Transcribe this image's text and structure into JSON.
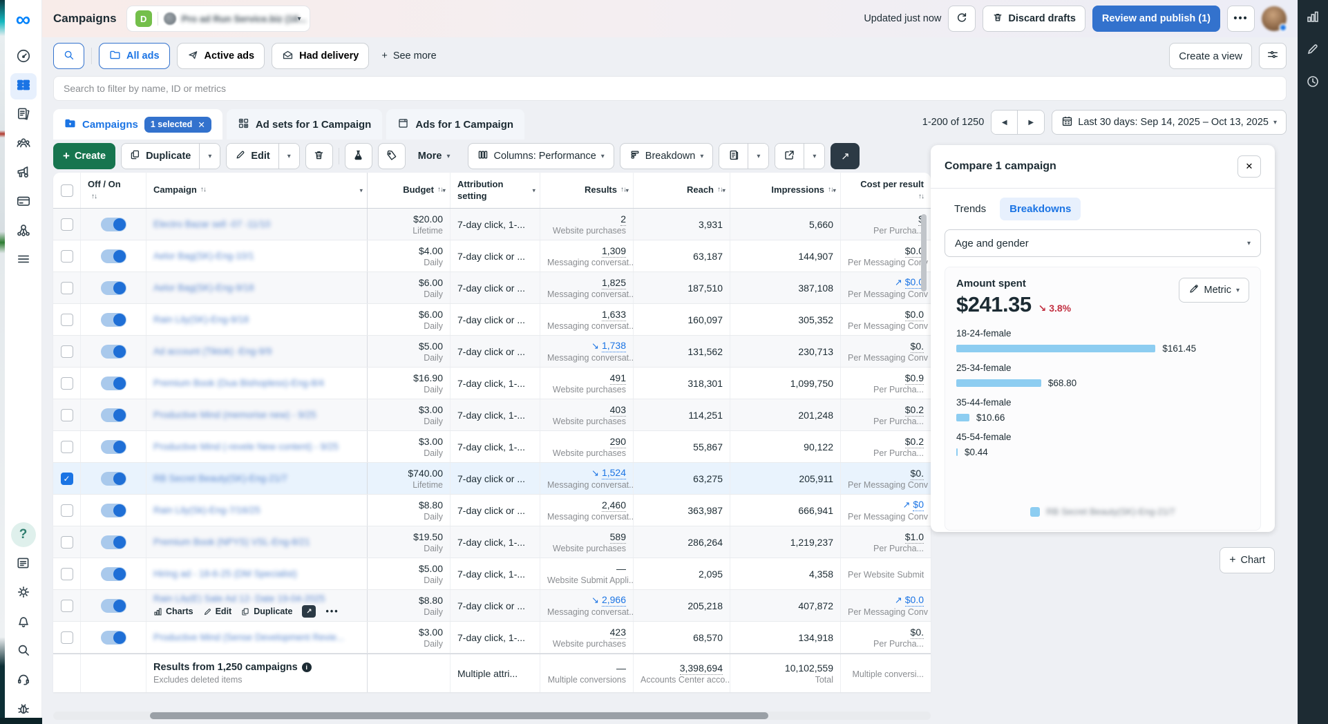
{
  "header": {
    "title": "Campaigns",
    "account_initial": "D",
    "account_name": "Pro ad Run Service.biz (18...",
    "updated": "Updated just now",
    "discard": "Discard drafts",
    "review": "Review and publish (1)"
  },
  "filters": {
    "all_ads": "All ads",
    "active_ads": "Active ads",
    "had_delivery": "Had delivery",
    "see_more": "See more",
    "create_view": "Create a view"
  },
  "search": {
    "placeholder": "Search to filter by name, ID or metrics"
  },
  "tabs": {
    "campaigns": "Campaigns",
    "selected_badge": "1 selected",
    "adsets": "Ad sets for 1 Campaign",
    "ads": "Ads for 1 Campaign"
  },
  "pagination": {
    "range": "1-200 of 1250",
    "date_range": "Last 30 days: Sep 14, 2025 – Oct 13, 2025"
  },
  "toolbar": {
    "create": "Create",
    "duplicate": "Duplicate",
    "edit": "Edit",
    "more": "More",
    "columns": "Columns: Performance",
    "breakdown": "Breakdown"
  },
  "row_actions": {
    "charts": "Charts",
    "edit": "Edit",
    "duplicate": "Duplicate"
  },
  "table": {
    "header": {
      "off_on": "Off / On",
      "campaign": "Campaign",
      "budget": "Budget",
      "attribution": "Attribution setting",
      "results": "Results",
      "reach": "Reach",
      "impressions": "Impressions",
      "cost": "Cost per result"
    },
    "rows": [
      {
        "name": "Electro Bazar sell -07 -11/10",
        "budget": "$20.00",
        "budget_period": "Lifetime",
        "attribution": "7-day click, 1-...",
        "results": "2",
        "results_type": "Website purchases",
        "reach": "3,931",
        "impressions": "5,660",
        "cost": "$",
        "cost_type": "Per Purcha..."
      },
      {
        "name": "Aelor Bag(SK)-Eng-10/1",
        "budget": "$4.00",
        "budget_period": "Daily",
        "attribution": "7-day click or ...",
        "results": "1,309",
        "results_type": "Messaging conversat...",
        "reach": "63,187",
        "impressions": "144,907",
        "cost": "$0.0",
        "cost_type": "Per Messaging Conv"
      },
      {
        "name": "Aelor Bag(SK)-Eng-9/18",
        "budget": "$6.00",
        "budget_period": "Daily",
        "attribution": "7-day click or ...",
        "results": "1,825",
        "results_type": "Messaging conversat...",
        "reach": "187,510",
        "impressions": "387,108",
        "cost": "$0.0",
        "cost_trend": "up",
        "cost_type": "Per Messaging Conv"
      },
      {
        "name": "Rain Lily(SK)-Eng-9/18",
        "budget": "$6.00",
        "budget_period": "Daily",
        "attribution": "7-day click or ...",
        "results": "1,633",
        "results_type": "Messaging conversat...",
        "reach": "160,097",
        "impressions": "305,352",
        "cost": "$0.0",
        "cost_type": "Per Messaging Conv"
      },
      {
        "name": "Ad account (Tiktok) -Eng-9/9",
        "budget": "$5.00",
        "budget_period": "Daily",
        "attribution": "7-day click or ...",
        "results": "1,738",
        "results_trend": "down",
        "results_type": "Messaging conversat...",
        "reach": "131,562",
        "impressions": "230,713",
        "cost": "$0.",
        "cost_type": "Per Messaging Conv"
      },
      {
        "name": "Premium Book (Dua Bishopless)-Eng-8/4",
        "budget": "$16.90",
        "budget_period": "Daily",
        "attribution": "7-day click, 1-...",
        "results": "491",
        "results_type": "Website purchases",
        "reach": "318,301",
        "impressions": "1,099,750",
        "cost": "$0.9",
        "cost_type": "Per Purcha..."
      },
      {
        "name": "Productive Mind (memorise new) - 9/25",
        "budget": "$3.00",
        "budget_period": "Daily",
        "attribution": "7-day click, 1-...",
        "results": "403",
        "results_type": "Website purchases",
        "reach": "114,251",
        "impressions": "201,248",
        "cost": "$0.2",
        "cost_type": "Per Purcha..."
      },
      {
        "name": "Productive Mind (-revele New content) - 9/25",
        "budget": "$3.00",
        "budget_period": "Daily",
        "attribution": "7-day click, 1-...",
        "results": "290",
        "results_type": "Website purchases",
        "reach": "55,867",
        "impressions": "90,122",
        "cost": "$0.2",
        "cost_type": "Per Purcha..."
      },
      {
        "name": "RB Secret Beauty(SK)-Eng-21/7",
        "budget": "$740.00",
        "budget_period": "Lifetime",
        "attribution": "7-day click or ...",
        "results": "1,524",
        "results_trend": "down",
        "results_type": "Messaging conversat...",
        "reach": "63,275",
        "impressions": "205,911",
        "cost": "$0.",
        "cost_type": "Per Messaging Conv",
        "selected": true
      },
      {
        "name": "Rain Lily(Sk)-Eng-7/16/25",
        "budget": "$8.80",
        "budget_period": "Daily",
        "attribution": "7-day click or ...",
        "results": "2,460",
        "results_type": "Messaging conversat...",
        "reach": "363,987",
        "impressions": "666,941",
        "cost": "$0",
        "cost_trend": "up",
        "cost_type": "Per Messaging Conv"
      },
      {
        "name": "Premium Book (NPYS) VSL-Eng-8/21",
        "budget": "$19.50",
        "budget_period": "Daily",
        "attribution": "7-day click, 1-...",
        "results": "589",
        "results_type": "Website purchases",
        "reach": "286,264",
        "impressions": "1,219,237",
        "cost": "$1.0",
        "cost_type": "Per Purcha..."
      },
      {
        "name": "Hiring ad - 18-6-25 (DM Specialist)",
        "budget": "$5.00",
        "budget_period": "Daily",
        "attribution": "7-day click, 1-...",
        "results": "—",
        "results_type": "Website Submit Appli...",
        "reach": "2,095",
        "impressions": "4,358",
        "cost": "",
        "cost_type": "Per Website Submit"
      },
      {
        "name": "Rain Lily(E) Sale Ad 12- Date 19-04-2025",
        "budget": "$8.80",
        "budget_period": "Daily",
        "attribution": "7-day click or ...",
        "results": "2,966",
        "results_trend": "down",
        "results_type": "Messaging conversat...",
        "reach": "205,218",
        "impressions": "407,872",
        "cost": "$0.0",
        "cost_trend": "up",
        "cost_type": "Per Messaging Conv",
        "actions": true
      },
      {
        "name": "Productive Mind (Sense Development Revie...",
        "budget": "$3.00",
        "budget_period": "Daily",
        "attribution": "7-day click, 1-...",
        "results": "423",
        "results_type": "Website purchases",
        "reach": "68,570",
        "impressions": "134,918",
        "cost": "$0.",
        "cost_type": "Per Purcha..."
      }
    ],
    "footer": {
      "title": "Results from 1,250 campaigns",
      "note": "Excludes deleted items",
      "attribution": "Multiple attri...",
      "results": "—",
      "results_type": "Multiple conversions",
      "reach": "3,398,694",
      "reach_type": "Accounts Center acco...",
      "impressions": "10,102,559",
      "impressions_type": "Total",
      "cost_type": "Multiple conversi..."
    }
  },
  "panel": {
    "title": "Compare 1 campaign",
    "tab_trends": "Trends",
    "tab_breakdowns": "Breakdowns",
    "breakdown_select": "Age and gender",
    "metric_button": "Metric",
    "chart_button": "Chart"
  },
  "chart_data": {
    "type": "bar",
    "orientation": "horizontal",
    "title": "Amount spent",
    "total_label": "$241.35",
    "change_label": "3.8%",
    "change_direction": "down",
    "categories": [
      "18-24-female",
      "25-34-female",
      "35-44-female",
      "45-54-female"
    ],
    "values": [
      161.45,
      68.8,
      10.66,
      0.44
    ],
    "labels": [
      "$161.45",
      "$68.80",
      "$10.66",
      "$0.44"
    ],
    "series": "RB Secret Beauty(SK)-Eng-21/7",
    "bar_color": "#8dcdf1",
    "xlim": [
      0,
      161.45
    ],
    "legend_position": "bottom"
  },
  "icons": {
    "caret_down": "▾",
    "sort": "↑↓",
    "prev": "◀",
    "next": "▶",
    "close": "✕",
    "dots": "•••",
    "plus": "+",
    "trend_down": "↘",
    "trend_up": "↗",
    "question": "?",
    "infinity": "∞",
    "info": "i",
    "check": "✓",
    "open_chart": "↗"
  },
  "colors": {
    "accent_blue": "#1b74e4",
    "button_blue": "#3372cd",
    "create_green": "#17754f",
    "bar_blue": "#8dcdf1",
    "delta_red": "#c22f41",
    "dark_text": "#1c2b33",
    "selected_row": "#e9f3fd",
    "rail_dark": "#1d2b33"
  }
}
